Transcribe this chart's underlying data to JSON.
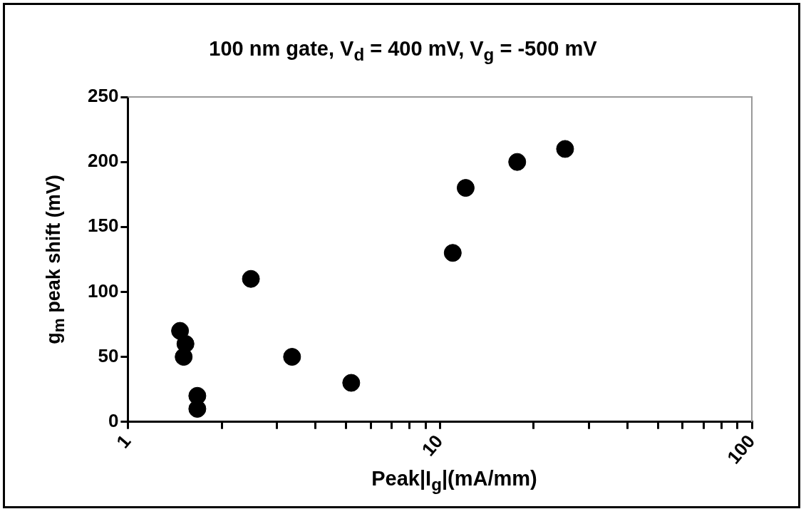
{
  "chart_data": {
    "type": "scatter",
    "title": "100 nm gate, V$_{d}$ = 400 mV, V$_{g}$ = -500 mV",
    "xlabel": "Peak|I$_{g}$|(mA/mm)",
    "ylabel": "g$_{m}$ peak shift (mV)",
    "x": [
      1.47,
      1.53,
      1.51,
      1.67,
      1.67,
      2.48,
      3.36,
      5.2,
      11,
      12.1,
      17.7,
      25.2
    ],
    "series": [
      {
        "color": "#000000",
        "values": [
          70,
          60,
          50,
          20,
          10,
          110,
          50,
          30,
          130,
          180,
          200,
          210
        ]
      }
    ],
    "log": "x",
    "xlim": [
      1,
      100
    ],
    "xticks": [
      1,
      {
        "value": 2,
        "label": null
      },
      {
        "value": 3,
        "label": null
      },
      {
        "value": 4,
        "label": null
      },
      {
        "value": 5,
        "label": null
      },
      {
        "value": 6,
        "label": null
      },
      {
        "value": 7,
        "label": null
      },
      {
        "value": 8,
        "label": null
      },
      {
        "value": 9,
        "label": null
      },
      10,
      {
        "value": 20,
        "label": null
      },
      {
        "value": 30,
        "label": null
      },
      {
        "value": 40,
        "label": null
      },
      {
        "value": 50,
        "label": null
      },
      {
        "value": 60,
        "label": null
      },
      {
        "value": 70,
        "label": null
      },
      {
        "value": 80,
        "label": null
      },
      {
        "value": 90,
        "label": null
      },
      100
    ],
    "ylim": [
      0,
      250
    ],
    "yticks": [
      0,
      50,
      100,
      150,
      200,
      250
    ],
    "grid": false,
    "legend": false,
    "marker": "circle"
  }
}
